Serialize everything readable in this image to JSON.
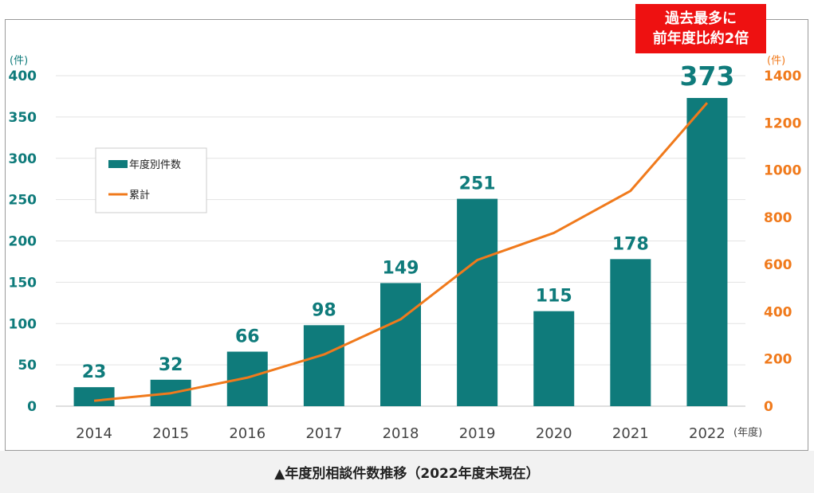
{
  "chart_data": {
    "type": "bar",
    "categories": [
      "2014",
      "2015",
      "2016",
      "2017",
      "2018",
      "2019",
      "2020",
      "2021",
      "2022"
    ],
    "series": [
      {
        "name": "年度別件数",
        "kind": "bar",
        "axis": "left",
        "values": [
          23,
          32,
          66,
          98,
          149,
          251,
          115,
          178,
          373
        ],
        "color": "#0f7b7b"
      },
      {
        "name": "累計",
        "kind": "line",
        "axis": "right",
        "values": [
          23,
          55,
          121,
          219,
          368,
          619,
          734,
          912,
          1285
        ],
        "color": "#f07a1c"
      }
    ],
    "ylim": [
      0,
      400
    ],
    "y2lim": [
      0,
      1400
    ],
    "yticks": [
      "0",
      "50",
      "100",
      "150",
      "200",
      "250",
      "300",
      "350",
      "400"
    ],
    "y2ticks": [
      "0",
      "200",
      "400",
      "600",
      "800",
      "1000",
      "1200",
      "1400"
    ],
    "data_labels": [
      "23",
      "32",
      "66",
      "98",
      "149",
      "251",
      "115",
      "178",
      "373"
    ],
    "ylabel_unit": "(件)",
    "y2label_unit": "(件)",
    "xlabel_unit": "(年度)",
    "legend_position": "top-left",
    "grid": true
  },
  "callout": {
    "line1": "過去最多に",
    "line2": "前年度比約2倍"
  },
  "caption": "▲年度別相談件数推移（2022年度末現在）",
  "colors": {
    "bar": "#0f7b7b",
    "line": "#f07a1c",
    "callout": "#ee1111"
  }
}
